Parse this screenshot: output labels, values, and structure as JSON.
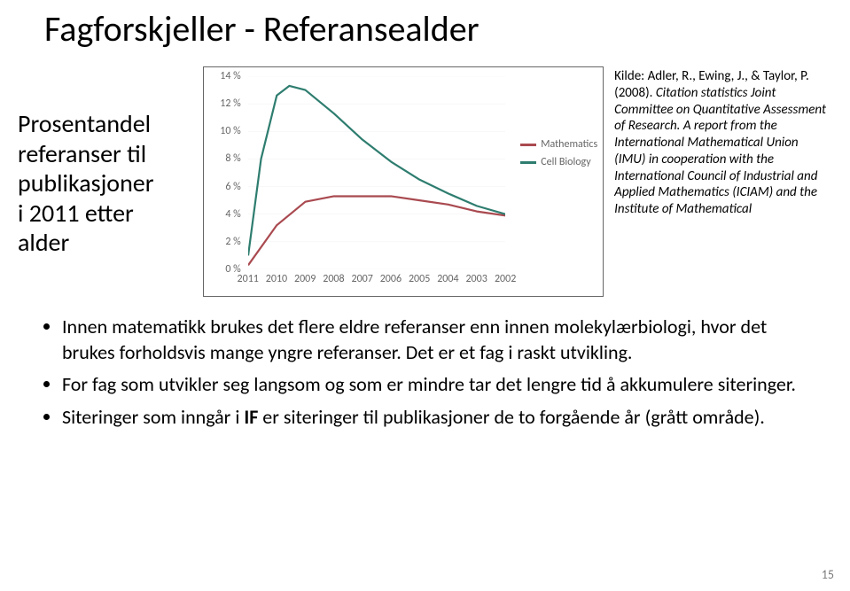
{
  "title": "Fagforskjeller - Referansealder",
  "left": {
    "l1": "Prosentandel",
    "l2": "referanser til",
    "l3": "publikasjoner",
    "l4": "i 2011 etter",
    "l5": "alder"
  },
  "right": {
    "p1a": "Kilde: Adler, R., Ewing, J., & Taylor, P. (2008). ",
    "p1b": "Citation statistics Joint Committee on Quantitative Assessment of Research. A report from the International Mathematical Union (IMU) in cooperation with the International Council of Industrial and Applied Mathematics (ICIAM) and the Institute of Mathematical"
  },
  "bullets": {
    "b1": "Innen matematikk brukes det flere eldre referanser enn innen molekylærbiologi, hvor det brukes forholdsvis mange yngre referanser. Det er et fag i raskt utvikling.",
    "b2": "For fag som utvikler seg langsom og som er mindre tar det lengre tid å akkumulere siteringer.",
    "b3a": "Siteringer som inngår i ",
    "b3_bold": "IF",
    "b3b": " er siteringer til publikasjoner de to forgående år (grått område)."
  },
  "pagenum": "15",
  "chart": {
    "x_categories": [
      "2011",
      "2010",
      "2009",
      "2008",
      "2007",
      "2006",
      "2005",
      "2004",
      "2003",
      "2002"
    ],
    "x_positions_pct": [
      0,
      11.1,
      22.2,
      33.3,
      44.4,
      55.5,
      66.6,
      77.7,
      88.8,
      100
    ],
    "y_ticks": [
      "0 %",
      "2 %",
      "4 %",
      "6 %",
      "8 %",
      "10 %",
      "12 %",
      "14 %"
    ],
    "ymax": 14,
    "series": [
      {
        "name": "Mathematics",
        "color": "#a94a50",
        "points": [
          [
            0,
            0.3
          ],
          [
            11.1,
            3.2
          ],
          [
            22.2,
            4.9
          ],
          [
            33.3,
            5.3
          ],
          [
            44.4,
            5.3
          ],
          [
            55.5,
            5.3
          ],
          [
            66.6,
            5.0
          ],
          [
            77.7,
            4.7
          ],
          [
            88.8,
            4.2
          ],
          [
            100,
            3.9
          ]
        ]
      },
      {
        "name": "Cell Biology",
        "color": "#2e7d6f",
        "points": [
          [
            0,
            1.0
          ],
          [
            5,
            8.0
          ],
          [
            11.1,
            12.6
          ],
          [
            16,
            13.3
          ],
          [
            22.2,
            13.0
          ],
          [
            33.3,
            11.3
          ],
          [
            44.4,
            9.4
          ],
          [
            55.5,
            7.8
          ],
          [
            66.6,
            6.5
          ],
          [
            77.7,
            5.5
          ],
          [
            88.8,
            4.6
          ],
          [
            100,
            4.0
          ]
        ]
      }
    ],
    "gridline_color": "#e5e5e5",
    "font_size": 12
  }
}
